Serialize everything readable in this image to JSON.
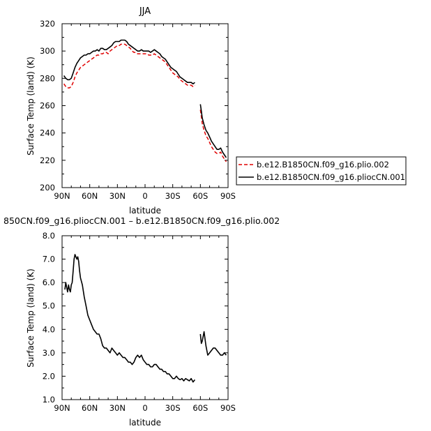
{
  "chart_data": [
    {
      "type": "line",
      "title": "JJA",
      "xlabel": "latitude",
      "ylabel": "Surface Temp (land) (K)",
      "xlim": [
        90,
        -90
      ],
      "ylim": [
        200,
        320
      ],
      "xtick_values": [
        90,
        60,
        30,
        0,
        -30,
        -60,
        -90
      ],
      "xtick_labels": [
        "90N",
        "60N",
        "30N",
        "0",
        "30S",
        "60S",
        "90S"
      ],
      "ytick_values": [
        200,
        220,
        240,
        260,
        280,
        300,
        320
      ],
      "ytick_labels": [
        "200",
        "220",
        "240",
        "260",
        "280",
        "300",
        "320"
      ],
      "legend_position": "right",
      "series": [
        {
          "name": "b.e12.B1850CN.f09_g16.plio.002",
          "color": "#e00000",
          "dash": true,
          "segments": [
            {
              "x": [
                88,
                86,
                84,
                82,
                80,
                78,
                76,
                74,
                72,
                70,
                68,
                66,
                64,
                62,
                60,
                58,
                56,
                54,
                52,
                50,
                48,
                46,
                44,
                42,
                40,
                38,
                36,
                34,
                32,
                30,
                28,
                26,
                24,
                22,
                20,
                18,
                16,
                14,
                12,
                10,
                8,
                6,
                4,
                2,
                0,
                -2,
                -4,
                -6,
                -8,
                -10,
                -12,
                -14,
                -16,
                -18,
                -20,
                -22,
                -24,
                -26,
                -28,
                -30,
                -32,
                -34,
                -36,
                -38,
                -40,
                -42,
                -44,
                -46,
                -48,
                -50,
                -52,
                -54
              ],
              "y": [
                276,
                274,
                273,
                273,
                274,
                277,
                281,
                284,
                286,
                288,
                289,
                290,
                291,
                292,
                293,
                294,
                295,
                296,
                297,
                297,
                298,
                298,
                299,
                299,
                298,
                300,
                301,
                302,
                303,
                304,
                304,
                305,
                305,
                305,
                304,
                303,
                302,
                300,
                299,
                299,
                298,
                298,
                298,
                298,
                298,
                298,
                297,
                297,
                297,
                298,
                297,
                296,
                295,
                294,
                293,
                292,
                290,
                288,
                286,
                284,
                283,
                282,
                281,
                279,
                278,
                277,
                276,
                275,
                275,
                275,
                274,
                275
              ]
            },
            {
              "x": [
                -60,
                -61,
                -62,
                -64,
                -66,
                -68,
                -70,
                -72,
                -74,
                -76,
                -78,
                -80,
                -82,
                -84,
                -86,
                -88
              ],
              "y": [
                257,
                252,
                247,
                242,
                238,
                236,
                233,
                230,
                228,
                226,
                225,
                225,
                226,
                223,
                221,
                219
              ]
            }
          ]
        },
        {
          "name": "b.e12.B1850CN.f09_g16.pliocCN.001",
          "color": "#000000",
          "dash": false,
          "segments": [
            {
              "x": [
                88,
                86,
                84,
                82,
                80,
                78,
                76,
                74,
                72,
                70,
                68,
                66,
                64,
                62,
                60,
                58,
                56,
                54,
                52,
                50,
                48,
                46,
                44,
                42,
                40,
                38,
                36,
                34,
                32,
                30,
                28,
                26,
                24,
                22,
                20,
                18,
                16,
                14,
                12,
                10,
                8,
                6,
                4,
                2,
                0,
                -2,
                -4,
                -6,
                -8,
                -10,
                -12,
                -14,
                -16,
                -18,
                -20,
                -22,
                -24,
                -26,
                -28,
                -30,
                -32,
                -34,
                -36,
                -38,
                -40,
                -42,
                -44,
                -46,
                -48,
                -50,
                -52,
                -54
              ],
              "y": [
                282,
                280,
                279,
                279,
                280,
                284,
                288,
                291,
                293,
                295,
                296,
                297,
                297,
                298,
                298,
                299,
                300,
                300,
                301,
                300,
                302,
                302,
                301,
                301,
                302,
                303,
                304,
                306,
                307,
                307,
                307,
                308,
                308,
                308,
                307,
                305,
                304,
                303,
                302,
                301,
                300,
                300,
                301,
                300,
                300,
                300,
                300,
                299,
                300,
                301,
                300,
                299,
                298,
                296,
                295,
                294,
                292,
                290,
                288,
                287,
                286,
                285,
                283,
                281,
                280,
                279,
                278,
                277,
                277,
                277,
                276,
                277
              ]
            },
            {
              "x": [
                -60,
                -61,
                -62,
                -64,
                -66,
                -68,
                -70,
                -72,
                -74,
                -76,
                -78,
                -80,
                -82,
                -84,
                -86,
                -88
              ],
              "y": [
                261,
                256,
                251,
                246,
                242,
                240,
                237,
                234,
                232,
                230,
                228,
                228,
                229,
                226,
                224,
                222
              ]
            }
          ]
        }
      ]
    },
    {
      "type": "line",
      "title": "850CN.f09_g16.pliocCN.001 – b.e12.B1850CN.f09_g16.plio.002",
      "xlabel": "latitude",
      "ylabel": "Surface Temp (land) (K)",
      "xlim": [
        90,
        -90
      ],
      "ylim": [
        1.0,
        8.0
      ],
      "xtick_values": [
        90,
        60,
        30,
        0,
        -30,
        -60,
        -90
      ],
      "xtick_labels": [
        "90N",
        "60N",
        "30N",
        "0",
        "30S",
        "60S",
        "90S"
      ],
      "ytick_values": [
        1,
        2,
        3,
        4,
        5,
        6,
        7,
        8
      ],
      "ytick_labels": [
        "1.0",
        "2.0",
        "3.0",
        "4.0",
        "5.0",
        "6.0",
        "7.0",
        "8.0"
      ],
      "series": [
        {
          "name": "",
          "color": "#000000",
          "dash": false,
          "segments": [
            {
              "x": [
                87,
                86,
                85,
                84,
                83,
                82,
                81,
                80,
                79,
                78,
                77,
                76,
                75,
                74,
                73,
                72,
                71,
                70,
                68,
                66,
                64,
                62,
                60,
                58,
                56,
                54,
                52,
                50,
                48,
                46,
                44,
                42,
                40,
                38,
                36,
                34,
                32,
                30,
                28,
                26,
                24,
                22,
                20,
                18,
                16,
                14,
                12,
                10,
                8,
                6,
                4,
                2,
                0,
                -2,
                -4,
                -6,
                -8,
                -10,
                -12,
                -14,
                -16,
                -18,
                -20,
                -22,
                -24,
                -26,
                -28,
                -30,
                -32,
                -34,
                -36,
                -38,
                -40,
                -42,
                -44,
                -46,
                -48,
                -50,
                -52,
                -54
              ],
              "y": [
                5.7,
                6.0,
                5.8,
                5.6,
                5.9,
                5.7,
                5.6,
                5.9,
                6.0,
                6.5,
                7.0,
                7.2,
                7.1,
                7.0,
                7.1,
                6.9,
                6.5,
                6.2,
                5.9,
                5.4,
                5.0,
                4.6,
                4.4,
                4.2,
                4.0,
                3.9,
                3.8,
                3.8,
                3.6,
                3.3,
                3.2,
                3.2,
                3.1,
                3.0,
                3.2,
                3.1,
                3.0,
                2.9,
                3.0,
                2.9,
                2.8,
                2.8,
                2.7,
                2.6,
                2.6,
                2.5,
                2.6,
                2.8,
                2.9,
                2.8,
                2.9,
                2.7,
                2.6,
                2.5,
                2.5,
                2.4,
                2.4,
                2.5,
                2.5,
                2.4,
                2.3,
                2.3,
                2.2,
                2.2,
                2.1,
                2.1,
                2.0,
                1.9,
                1.9,
                2.0,
                1.9,
                1.85,
                1.9,
                1.8,
                1.9,
                1.85,
                1.8,
                1.9,
                1.75,
                1.85
              ]
            },
            {
              "x": [
                -60,
                -61,
                -62,
                -64,
                -66,
                -68,
                -70,
                -72,
                -74,
                -76,
                -78,
                -80,
                -82,
                -84,
                -86,
                -88
              ],
              "y": [
                3.8,
                3.4,
                3.5,
                3.9,
                3.3,
                2.9,
                3.0,
                3.1,
                3.2,
                3.2,
                3.1,
                3.0,
                2.9,
                2.9,
                3.0,
                2.9
              ]
            }
          ]
        }
      ]
    }
  ]
}
